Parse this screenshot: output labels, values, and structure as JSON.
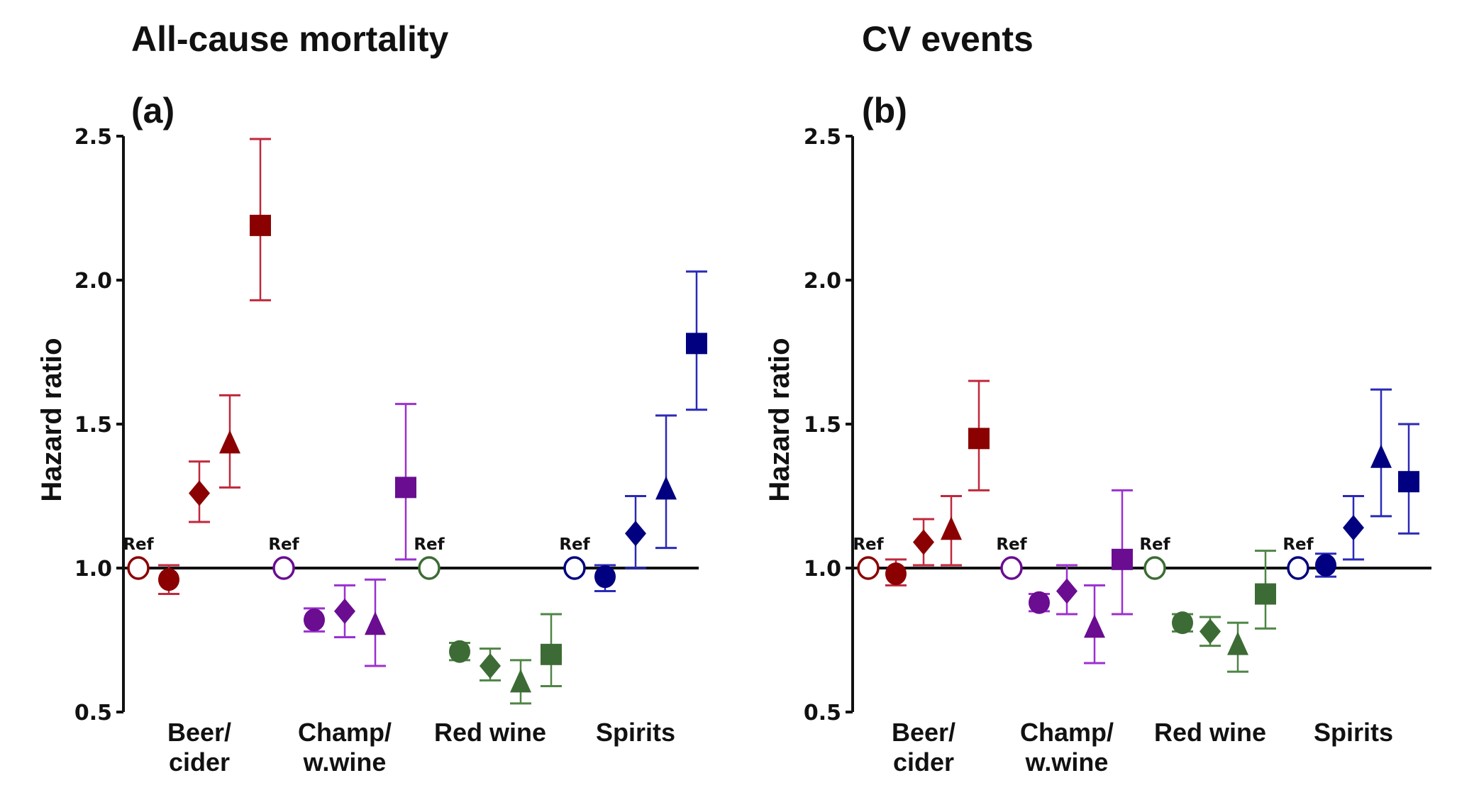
{
  "chart_data": [
    {
      "type": "scatter",
      "title": "All-cause mortality",
      "panel_label": "(a)",
      "ylabel": "Hazard ratio",
      "xlabel": "",
      "ylim": [
        0.5,
        2.5
      ],
      "yticks": [
        0.5,
        1.0,
        1.5,
        2.0,
        2.5
      ],
      "ytick_labels": [
        "0.5",
        "1.0",
        "1.5",
        "2.0",
        "2.5"
      ],
      "reference_line": 1.0,
      "grid": false,
      "ref_label": "Ref",
      "marker_order": [
        "ref-open-circle",
        "circle",
        "diamond",
        "triangle",
        "square"
      ],
      "groups": [
        {
          "name": "Beer/\ncider",
          "label_lines": [
            "Beer/",
            "cider"
          ],
          "marker_color": "#8b0000",
          "bar_color": "#c0283c",
          "points": [
            {
              "marker": "ref-open-circle",
              "hr": 1.0
            },
            {
              "marker": "circle",
              "hr": 0.96,
              "lo": 0.91,
              "hi": 1.01
            },
            {
              "marker": "diamond",
              "hr": 1.26,
              "lo": 1.16,
              "hi": 1.37
            },
            {
              "marker": "triangle",
              "hr": 1.43,
              "lo": 1.28,
              "hi": 1.6
            },
            {
              "marker": "square",
              "hr": 2.19,
              "lo": 1.93,
              "hi": 2.49
            }
          ]
        },
        {
          "name": "Champ/\nw.wine",
          "label_lines": [
            "Champ/",
            "w.wine"
          ],
          "marker_color": "#6a0d91",
          "bar_color": "#9b30d0",
          "points": [
            {
              "marker": "ref-open-circle",
              "hr": 1.0
            },
            {
              "marker": "circle",
              "hr": 0.82,
              "lo": 0.78,
              "hi": 0.86
            },
            {
              "marker": "diamond",
              "hr": 0.85,
              "lo": 0.76,
              "hi": 0.94
            },
            {
              "marker": "triangle",
              "hr": 0.8,
              "lo": 0.66,
              "hi": 0.96
            },
            {
              "marker": "square",
              "hr": 1.28,
              "lo": 1.03,
              "hi": 1.57
            }
          ]
        },
        {
          "name": "Red wine",
          "label_lines": [
            "Red wine"
          ],
          "marker_color": "#3d6b35",
          "bar_color": "#4e8545",
          "points": [
            {
              "marker": "ref-open-circle",
              "hr": 1.0
            },
            {
              "marker": "circle",
              "hr": 0.71,
              "lo": 0.68,
              "hi": 0.74
            },
            {
              "marker": "diamond",
              "hr": 0.66,
              "lo": 0.61,
              "hi": 0.72
            },
            {
              "marker": "triangle",
              "hr": 0.6,
              "lo": 0.53,
              "hi": 0.68
            },
            {
              "marker": "square",
              "hr": 0.7,
              "lo": 0.59,
              "hi": 0.84
            }
          ]
        },
        {
          "name": "Spirits",
          "label_lines": [
            "Spirits"
          ],
          "marker_color": "#000080",
          "bar_color": "#2a2ab8",
          "points": [
            {
              "marker": "ref-open-circle",
              "hr": 1.0
            },
            {
              "marker": "circle",
              "hr": 0.97,
              "lo": 0.92,
              "hi": 1.01
            },
            {
              "marker": "diamond",
              "hr": 1.12,
              "lo": 1.0,
              "hi": 1.25
            },
            {
              "marker": "triangle",
              "hr": 1.27,
              "lo": 1.07,
              "hi": 1.53
            },
            {
              "marker": "square",
              "hr": 1.78,
              "lo": 1.55,
              "hi": 2.03
            }
          ]
        }
      ]
    },
    {
      "type": "scatter",
      "title": "CV events",
      "panel_label": "(b)",
      "ylabel": "Hazard ratio",
      "xlabel": "",
      "ylim": [
        0.5,
        2.5
      ],
      "yticks": [
        0.5,
        1.0,
        1.5,
        2.0,
        2.5
      ],
      "ytick_labels": [
        "0.5",
        "1.0",
        "1.5",
        "2.0",
        "2.5"
      ],
      "reference_line": 1.0,
      "grid": false,
      "ref_label": "Ref",
      "marker_order": [
        "ref-open-circle",
        "circle",
        "diamond",
        "triangle",
        "square"
      ],
      "groups": [
        {
          "name": "Beer/\ncider",
          "label_lines": [
            "Beer/",
            "cider"
          ],
          "marker_color": "#8b0000",
          "bar_color": "#c0283c",
          "points": [
            {
              "marker": "ref-open-circle",
              "hr": 1.0
            },
            {
              "marker": "circle",
              "hr": 0.98,
              "lo": 0.94,
              "hi": 1.03
            },
            {
              "marker": "diamond",
              "hr": 1.09,
              "lo": 1.01,
              "hi": 1.17
            },
            {
              "marker": "triangle",
              "hr": 1.13,
              "lo": 1.01,
              "hi": 1.25
            },
            {
              "marker": "square",
              "hr": 1.45,
              "lo": 1.27,
              "hi": 1.65
            }
          ]
        },
        {
          "name": "Champ/\nw.wine",
          "label_lines": [
            "Champ/",
            "w.wine"
          ],
          "marker_color": "#6a0d91",
          "bar_color": "#9b30d0",
          "points": [
            {
              "marker": "ref-open-circle",
              "hr": 1.0
            },
            {
              "marker": "circle",
              "hr": 0.88,
              "lo": 0.85,
              "hi": 0.91
            },
            {
              "marker": "diamond",
              "hr": 0.92,
              "lo": 0.84,
              "hi": 1.01
            },
            {
              "marker": "triangle",
              "hr": 0.79,
              "lo": 0.67,
              "hi": 0.94
            },
            {
              "marker": "square",
              "hr": 1.03,
              "lo": 0.84,
              "hi": 1.27
            }
          ]
        },
        {
          "name": "Red wine",
          "label_lines": [
            "Red wine"
          ],
          "marker_color": "#3d6b35",
          "bar_color": "#4e8545",
          "points": [
            {
              "marker": "ref-open-circle",
              "hr": 1.0
            },
            {
              "marker": "circle",
              "hr": 0.81,
              "lo": 0.78,
              "hi": 0.84
            },
            {
              "marker": "diamond",
              "hr": 0.78,
              "lo": 0.73,
              "hi": 0.83
            },
            {
              "marker": "triangle",
              "hr": 0.73,
              "lo": 0.64,
              "hi": 0.81
            },
            {
              "marker": "square",
              "hr": 0.91,
              "lo": 0.79,
              "hi": 1.06
            }
          ]
        },
        {
          "name": "Spirits",
          "label_lines": [
            "Spirits"
          ],
          "marker_color": "#000080",
          "bar_color": "#2a2ab8",
          "points": [
            {
              "marker": "ref-open-circle",
              "hr": 1.0
            },
            {
              "marker": "circle",
              "hr": 1.01,
              "lo": 0.97,
              "hi": 1.05
            },
            {
              "marker": "diamond",
              "hr": 1.14,
              "lo": 1.03,
              "hi": 1.25
            },
            {
              "marker": "triangle",
              "hr": 1.38,
              "lo": 1.18,
              "hi": 1.62
            },
            {
              "marker": "square",
              "hr": 1.3,
              "lo": 1.12,
              "hi": 1.5
            }
          ]
        }
      ]
    }
  ]
}
